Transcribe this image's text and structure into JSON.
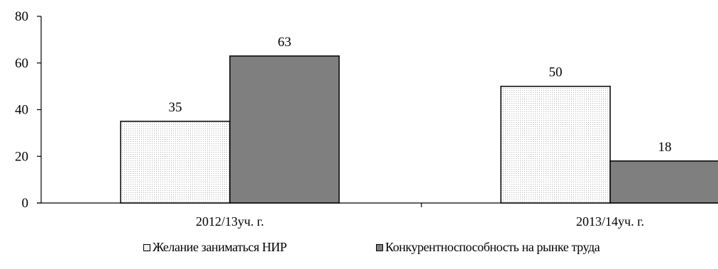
{
  "chart_data": {
    "type": "bar",
    "categories": [
      "2012/13уч. г.",
      "2013/14уч. г."
    ],
    "series": [
      {
        "name": "Желание заниматься НИР",
        "values": [
          35,
          50
        ],
        "color": "#ffffff",
        "pattern": "dotted"
      },
      {
        "name": "Конкурентноспособность на рынке труда",
        "values": [
          63,
          18
        ],
        "color": "#7f7f7f",
        "pattern": "solid"
      }
    ],
    "ylim": [
      0,
      80
    ],
    "yticks": [
      0,
      20,
      40,
      60,
      80
    ],
    "ytick_labels": [
      "0",
      "20",
      "40",
      "60",
      "80"
    ],
    "data_labels": true,
    "grid": false,
    "legend_position": "bottom",
    "title": "",
    "xlabel": "",
    "ylabel": ""
  }
}
